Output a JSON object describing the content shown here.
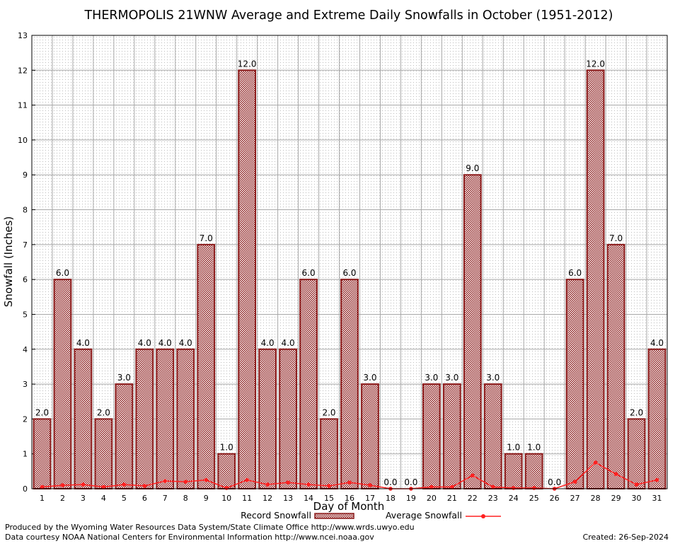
{
  "chart_data": {
    "type": "bar",
    "title": "THERMOPOLIS 21WNW Average and Extreme Daily Snowfalls in October (1951-2012)",
    "xlabel": "Day of Month",
    "ylabel": "Snowfall (Inches)",
    "ylim": [
      0,
      13
    ],
    "yticks": [
      "0",
      "1",
      "2",
      "3",
      "4",
      "5",
      "6",
      "7",
      "8",
      "9",
      "10",
      "11",
      "12",
      "13"
    ],
    "categories": [
      "1",
      "2",
      "3",
      "4",
      "5",
      "6",
      "7",
      "8",
      "9",
      "10",
      "11",
      "12",
      "13",
      "14",
      "15",
      "16",
      "17",
      "18",
      "19",
      "20",
      "21",
      "22",
      "23",
      "24",
      "25",
      "26",
      "27",
      "28",
      "29",
      "30",
      "31"
    ],
    "series": [
      {
        "name": "Record Snowfall",
        "kind": "bar",
        "color": "#8b1a1a",
        "values": [
          2.0,
          6.0,
          4.0,
          2.0,
          3.0,
          4.0,
          4.0,
          4.0,
          7.0,
          1.0,
          12.0,
          4.0,
          4.0,
          6.0,
          2.0,
          6.0,
          3.0,
          0.0,
          0.0,
          3.0,
          3.0,
          9.0,
          3.0,
          1.0,
          1.0,
          0.0,
          6.0,
          12.0,
          7.0,
          2.0,
          4.0
        ],
        "labels": [
          "2.0",
          "6.0",
          "4.0",
          "2.0",
          "3.0",
          "4.0",
          "4.0",
          "4.0",
          "7.0",
          "1.0",
          "12.0",
          "4.0",
          "4.0",
          "6.0",
          "2.0",
          "6.0",
          "3.0",
          "0.0",
          "0.0",
          "3.0",
          "3.0",
          "9.0",
          "3.0",
          "1.0",
          "1.0",
          "0.0",
          "6.0",
          "12.0",
          "7.0",
          "2.0",
          "4.0"
        ]
      },
      {
        "name": "Average Snowfall",
        "kind": "line",
        "color": "#ff2020",
        "values": [
          0.05,
          0.1,
          0.12,
          0.05,
          0.12,
          0.08,
          0.22,
          0.2,
          0.25,
          0.02,
          0.25,
          0.12,
          0.18,
          0.12,
          0.08,
          0.18,
          0.1,
          0.0,
          0.0,
          0.05,
          0.05,
          0.38,
          0.05,
          0.02,
          0.02,
          0.0,
          0.2,
          0.75,
          0.42,
          0.12,
          0.25
        ]
      }
    ],
    "grid": true,
    "legend": "bottom-center"
  },
  "footer": {
    "produced_by": "Produced by the Wyoming Water Resources Data System/State Climate Office http://www.wrds.uwyo.edu",
    "courtesy": "Data courtesy NOAA National Centers for Environmental Information http://www.ncei.noaa.gov",
    "created": "Created:  26-Sep-2024"
  }
}
